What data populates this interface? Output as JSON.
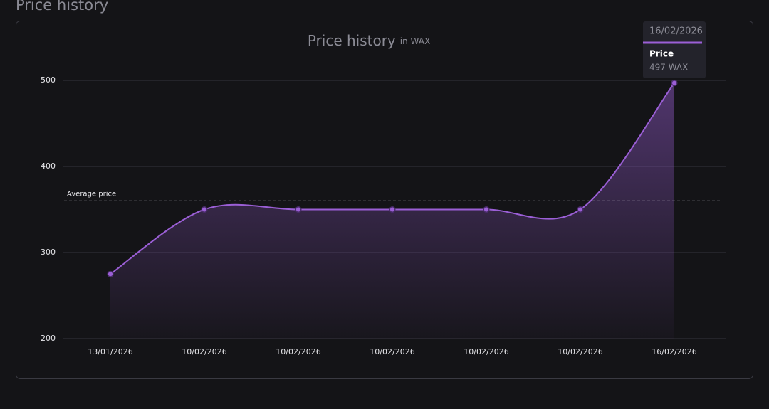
{
  "section_title": "Price history",
  "chart_data": {
    "type": "line",
    "title": "Price history",
    "subtitle": "in WAX",
    "categories": [
      "13/01/2026",
      "10/02/2026",
      "10/02/2026",
      "10/02/2026",
      "10/02/2026",
      "10/02/2026",
      "16/02/2026"
    ],
    "series": [
      {
        "name": "Price",
        "color": "#9b5fd6",
        "values": [
          275,
          350,
          350,
          350,
          350,
          350,
          497
        ]
      }
    ],
    "ylim": [
      200,
      500
    ],
    "yticks": [
      200,
      300,
      400,
      500
    ],
    "grid": true,
    "average": {
      "label": "Average price",
      "value": 360
    },
    "tooltip": {
      "title": "16/02/2026",
      "value_label": "497 WAX"
    }
  }
}
